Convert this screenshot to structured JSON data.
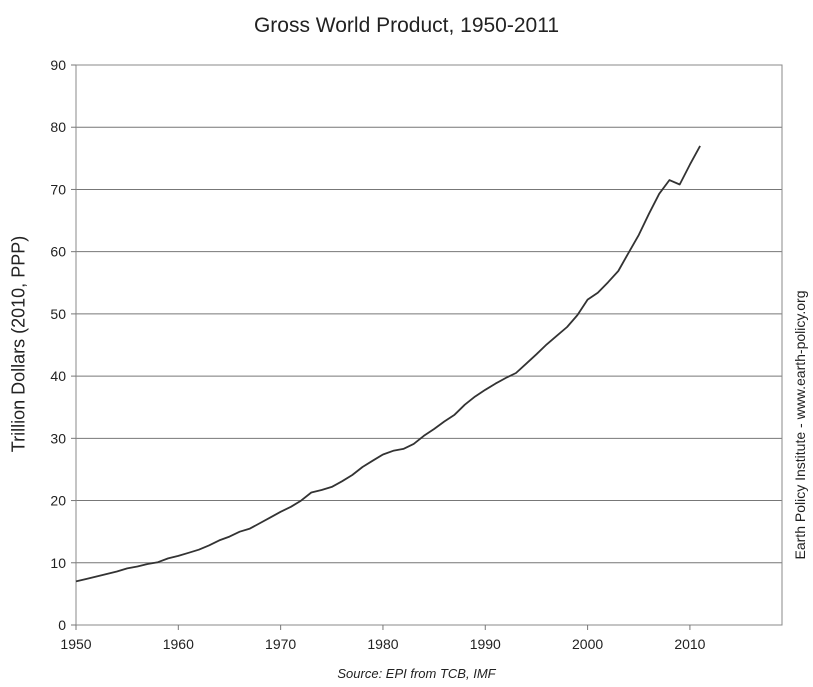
{
  "chart_data": {
    "type": "line",
    "title": "Gross World Product, 1950-2011",
    "ylabel": "Trillion Dollars (2010, PPP)",
    "xlabel": "",
    "side_label": "Earth Policy Institute - www.earth-policy.org",
    "source": "Source: EPI from TCB, IMF",
    "xlim": [
      1950,
      2019
    ],
    "ylim": [
      0,
      90
    ],
    "x_ticks": [
      1950,
      1960,
      1970,
      1980,
      1990,
      2000,
      2010
    ],
    "y_ticks": [
      0,
      10,
      20,
      30,
      40,
      50,
      60,
      70,
      80,
      90
    ],
    "grid": true,
    "series_color": "#333333",
    "series": [
      {
        "x": [
          1950,
          1951,
          1952,
          1953,
          1954,
          1955,
          1956,
          1957,
          1958,
          1959,
          1960,
          1961,
          1962,
          1963,
          1964,
          1965,
          1966,
          1967,
          1968,
          1969,
          1970,
          1971,
          1972,
          1973,
          1974,
          1975,
          1976,
          1977,
          1978,
          1979,
          1980,
          1981,
          1982,
          1983,
          1984,
          1985,
          1986,
          1987,
          1988,
          1989,
          1990,
          1991,
          1992,
          1993,
          1994,
          1995,
          1996,
          1997,
          1998,
          1999,
          2000,
          2001,
          2002,
          2003,
          2004,
          2005,
          2006,
          2007,
          2008,
          2009,
          2010,
          2011
        ],
        "values": [
          7.0,
          7.4,
          7.8,
          8.2,
          8.6,
          9.1,
          9.4,
          9.8,
          10.1,
          10.7,
          11.1,
          11.6,
          12.1,
          12.8,
          13.6,
          14.2,
          15.0,
          15.5,
          16.4,
          17.3,
          18.2,
          19.0,
          20.0,
          21.3,
          21.7,
          22.2,
          23.1,
          24.1,
          25.4,
          26.4,
          27.4,
          28.0,
          28.3,
          29.1,
          30.4,
          31.5,
          32.7,
          33.8,
          35.4,
          36.7,
          37.8,
          38.8,
          39.7,
          40.5,
          42.0,
          43.5,
          45.1,
          46.5,
          47.9,
          49.8,
          52.3,
          53.4,
          55.1,
          56.9,
          59.8,
          62.7,
          66.1,
          69.3,
          71.5,
          70.8,
          74.0,
          77.0
        ]
      }
    ]
  }
}
